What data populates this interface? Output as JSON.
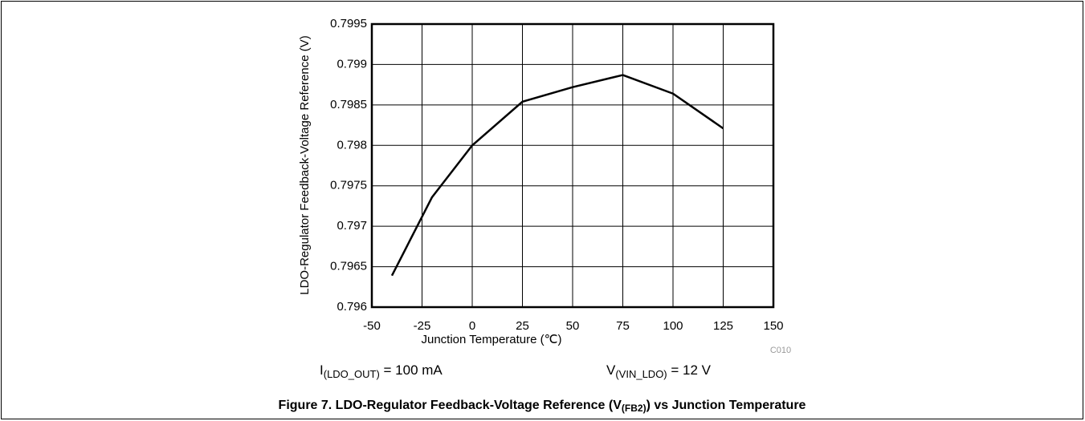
{
  "chart_data": {
    "type": "line",
    "x": [
      -40,
      -20,
      0,
      25,
      50,
      75,
      100,
      125
    ],
    "values": [
      0.79639,
      0.79736,
      0.798,
      0.79854,
      0.79872,
      0.79887,
      0.79864,
      0.79821
    ],
    "color": "#000000",
    "xlim": [
      -50,
      150
    ],
    "xticks": [
      -50,
      -25,
      0,
      25,
      50,
      75,
      100,
      125,
      150
    ],
    "ylim": [
      0.796,
      0.7995
    ],
    "yticks": [
      0.796,
      0.7965,
      0.797,
      0.7975,
      0.798,
      0.7985,
      0.799,
      0.7995
    ],
    "grid": true,
    "x_label": "Junction Temperature (℃)",
    "y_label": "LDO-Regulator Feedback-Voltage Reference (V)",
    "code": "C010",
    "annotations": [
      {
        "main": "I",
        "sub": "(LDO_OUT)",
        "rest": " = 100 mA"
      },
      {
        "main": "V",
        "sub": "(VIN_LDO)",
        "rest": " = 12 V"
      }
    ],
    "title": {
      "main": "Figure 7. LDO-Regulator Feedback-Voltage Reference (V",
      "sub": "(FB2)",
      "rest": ") vs Junction Temperature"
    }
  }
}
